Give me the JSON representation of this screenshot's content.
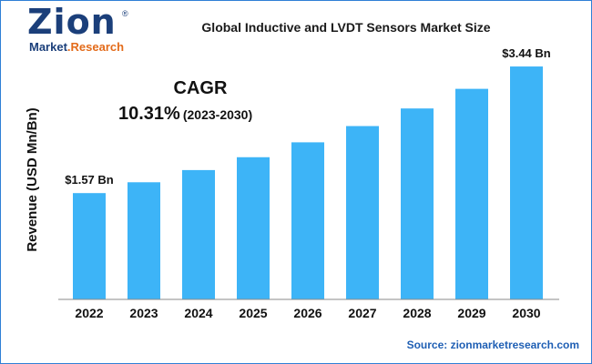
{
  "logo": {
    "main": "Zion",
    "reg": "®",
    "sub_a": "Market",
    "sub_b": ".Research"
  },
  "header": {
    "title": "Global Inductive and LVDT Sensors Market Size"
  },
  "cagr": {
    "label": "CAGR",
    "value": "10.31%",
    "period": "(2023-2030)"
  },
  "source": "Source: zionmarketresearch.com",
  "colors": {
    "bar": "#3db4f7",
    "axis": "#8a8a8a",
    "border": "#2f7fd6",
    "brand": "#1b3f7a"
  },
  "chart_data": {
    "type": "bar",
    "title": "Global Inductive and LVDT Sensors Market Size",
    "xlabel": "",
    "ylabel": "Revenue (USD Mn/Bn)",
    "categories": [
      "2022",
      "2023",
      "2024",
      "2025",
      "2026",
      "2027",
      "2028",
      "2029",
      "2030"
    ],
    "values": [
      1.57,
      1.73,
      1.91,
      2.1,
      2.32,
      2.56,
      2.82,
      3.11,
      3.44
    ],
    "unit": "USD Bn",
    "ylim": [
      0,
      3.75
    ],
    "grid": false,
    "annotations": [
      {
        "category": "2022",
        "text": "$1.57 Bn"
      },
      {
        "category": "2030",
        "text": "$3.44 Bn"
      }
    ]
  }
}
